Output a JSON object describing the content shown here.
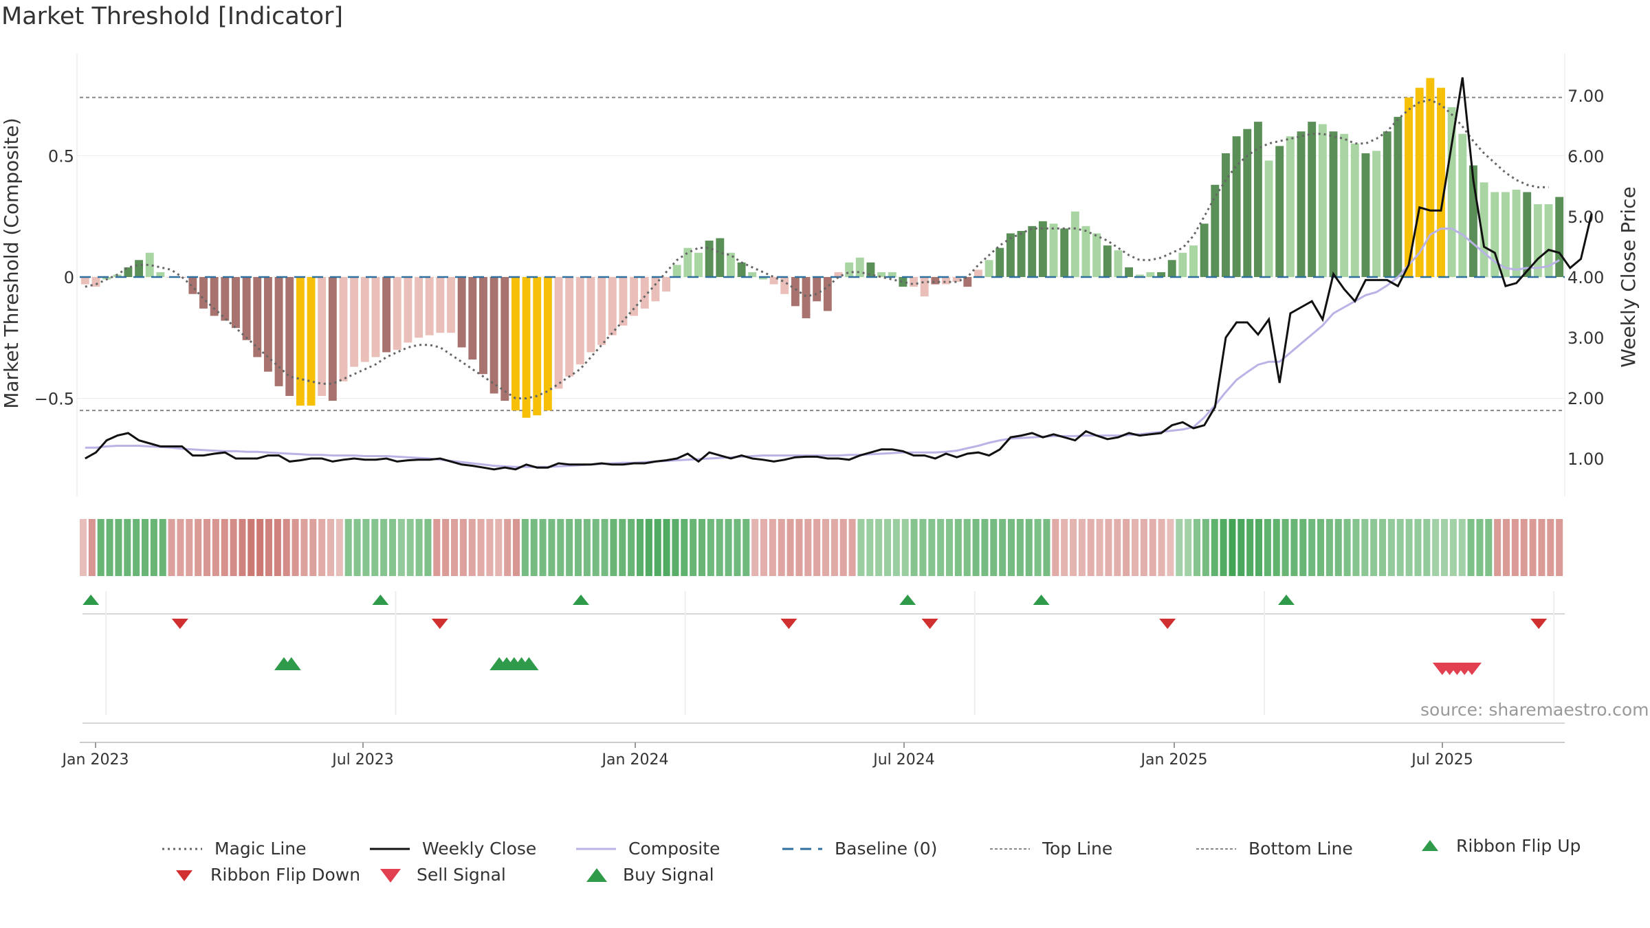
{
  "title": "Market Threshold [Indicator]",
  "source": "source: sharemaestro.com",
  "colors": {
    "dark_green": "#5b8f58",
    "light_green": "#a8d5a2",
    "dark_red": "#a8736e",
    "light_red": "#eabfb9",
    "yellow": "#f6c008",
    "weekly_close": "#111111",
    "composite": "#b9b3e6",
    "magic_line": "#666666",
    "baseline": "#2f6f9e",
    "ref_lines": "#888888",
    "buy_up": "#2e9a4a",
    "flip_down": "#d03030",
    "sell": "#e04050"
  },
  "chart_data": {
    "type": "bar",
    "y_left_label": "Market Threshold (Composite)",
    "y_right_label": "Weekly Close Price",
    "y_left_ticks": [
      "0.5",
      "0",
      "−0.5"
    ],
    "y_right_ticks": [
      "7.00",
      "6.00",
      "5.00",
      "4.00",
      "3.00",
      "2.00",
      "1.00"
    ],
    "x_ticks": [
      "Jan 2023",
      "Jul 2023",
      "Jan 2024",
      "Jul 2024",
      "Jan 2025",
      "Jul 2025"
    ],
    "top_line": 0.74,
    "bottom_line": -0.55,
    "baseline": 0,
    "composite_bars": [
      -0.03,
      -0.04,
      -0.01,
      0.01,
      0.04,
      0.07,
      0.1,
      0.02,
      0,
      0,
      -0.07,
      -0.13,
      -0.16,
      -0.18,
      -0.21,
      -0.26,
      -0.33,
      -0.39,
      -0.45,
      -0.49,
      -0.53,
      -0.53,
      -0.49,
      -0.51,
      -0.43,
      -0.37,
      -0.35,
      -0.33,
      -0.31,
      -0.3,
      -0.27,
      -0.25,
      -0.24,
      -0.23,
      -0.23,
      -0.29,
      -0.34,
      -0.4,
      -0.48,
      -0.51,
      -0.55,
      -0.58,
      -0.57,
      -0.55,
      -0.46,
      -0.41,
      -0.36,
      -0.31,
      -0.28,
      -0.24,
      -0.2,
      -0.16,
      -0.13,
      -0.1,
      -0.06,
      0.05,
      0.12,
      0.1,
      0.15,
      0.16,
      0.1,
      0.06,
      0.02,
      -0.01,
      -0.03,
      -0.07,
      -0.12,
      -0.17,
      -0.1,
      -0.14,
      0.02,
      0.06,
      0.08,
      0.06,
      0.02,
      0.02,
      -0.04,
      -0.04,
      -0.08,
      -0.03,
      -0.03,
      -0.02,
      -0.04,
      0.03,
      0.07,
      0.12,
      0.18,
      0.19,
      0.21,
      0.23,
      0.22,
      0.2,
      0.27,
      0.21,
      0.18,
      0.13,
      0.11,
      0.04,
      0.01,
      0.02,
      0.02,
      0.07,
      0.1,
      0.13,
      0.22,
      0.38,
      0.51,
      0.58,
      0.61,
      0.64,
      0.48,
      0.54,
      0.58,
      0.6,
      0.64,
      0.63,
      0.6,
      0.59,
      0.55,
      0.51,
      0.52,
      0.6,
      0.66,
      0.74,
      0.78,
      0.82,
      0.78,
      0.7,
      0.59,
      0.46,
      0.39,
      0.35,
      0.35,
      0.36,
      0.35,
      0.3,
      0.3,
      0.33
    ],
    "magic_line": [
      -0.04,
      -0.03,
      -0.01,
      0.01,
      0.04,
      0.05,
      0.05,
      0.04,
      0.03,
      0,
      -0.04,
      -0.09,
      -0.13,
      -0.17,
      -0.21,
      -0.25,
      -0.29,
      -0.33,
      -0.37,
      -0.41,
      -0.42,
      -0.43,
      -0.44,
      -0.44,
      -0.42,
      -0.4,
      -0.38,
      -0.36,
      -0.33,
      -0.31,
      -0.29,
      -0.28,
      -0.28,
      -0.29,
      -0.32,
      -0.35,
      -0.38,
      -0.41,
      -0.44,
      -0.47,
      -0.5,
      -0.5,
      -0.49,
      -0.47,
      -0.44,
      -0.41,
      -0.38,
      -0.33,
      -0.28,
      -0.23,
      -0.18,
      -0.13,
      -0.08,
      -0.03,
      0.02,
      0.07,
      0.1,
      0.12,
      0.12,
      0.1,
      0.09,
      0.06,
      0.04,
      0.02,
      0,
      -0.02,
      -0.05,
      -0.08,
      -0.07,
      -0.04,
      0,
      0.02,
      0.02,
      0.01,
      0,
      -0.01,
      -0.02,
      -0.03,
      -0.02,
      -0.02,
      -0.02,
      -0.02,
      0,
      0.05,
      0.09,
      0.13,
      0.16,
      0.18,
      0.2,
      0.2,
      0.2,
      0.2,
      0.2,
      0.19,
      0.17,
      0.15,
      0.12,
      0.09,
      0.07,
      0.07,
      0.08,
      0.1,
      0.12,
      0.17,
      0.25,
      0.33,
      0.4,
      0.46,
      0.5,
      0.53,
      0.55,
      0.56,
      0.57,
      0.58,
      0.59,
      0.59,
      0.58,
      0.57,
      0.55,
      0.55,
      0.57,
      0.6,
      0.65,
      0.69,
      0.72,
      0.73,
      0.71,
      0.67,
      0.62,
      0.56,
      0.51,
      0.47,
      0.43,
      0.4,
      0.38,
      0.37,
      0.37
    ],
    "composite_line": [
      1.18,
      1.18,
      1.2,
      1.21,
      1.21,
      1.21,
      1.2,
      1.19,
      1.18,
      1.16,
      1.15,
      1.14,
      1.13,
      1.12,
      1.12,
      1.11,
      1.11,
      1.1,
      1.09,
      1.08,
      1.07,
      1.06,
      1.06,
      1.05,
      1.05,
      1.05,
      1.04,
      1.04,
      1.04,
      1.03,
      1.02,
      1.01,
      1.0,
      0.98,
      0.96,
      0.94,
      0.92,
      0.9,
      0.88,
      0.87,
      0.86,
      0.86,
      0.86,
      0.86,
      0.87,
      0.88,
      0.89,
      0.9,
      0.91,
      0.92,
      0.93,
      0.93,
      0.94,
      0.95,
      0.96,
      0.97,
      0.98,
      0.99,
      1.0,
      1.01,
      1.02,
      1.03,
      1.04,
      1.05,
      1.05,
      1.05,
      1.05,
      1.05,
      1.05,
      1.05,
      1.05,
      1.06,
      1.06,
      1.07,
      1.08,
      1.09,
      1.1,
      1.1,
      1.1,
      1.1,
      1.11,
      1.13,
      1.17,
      1.21,
      1.26,
      1.3,
      1.33,
      1.34,
      1.35,
      1.36,
      1.37,
      1.37,
      1.37,
      1.38,
      1.38,
      1.38,
      1.38,
      1.39,
      1.4,
      1.42,
      1.44,
      1.46,
      1.48,
      1.52,
      1.68,
      1.88,
      2.1,
      2.3,
      2.43,
      2.55,
      2.6,
      2.6,
      2.75,
      2.9,
      3.05,
      3.2,
      3.4,
      3.5,
      3.6,
      3.7,
      3.75,
      3.86,
      4.0,
      4.2,
      4.4,
      4.7,
      4.8,
      4.8,
      4.7,
      4.55,
      4.4,
      4.25,
      4.15,
      4.12,
      4.15,
      4.15,
      4.18,
      4.28
    ],
    "weekly_close": [
      1.0,
      1.1,
      1.3,
      1.38,
      1.42,
      1.3,
      1.25,
      1.2,
      1.2,
      1.2,
      1.05,
      1.05,
      1.08,
      1.1,
      1.0,
      1.0,
      1.0,
      1.05,
      1.05,
      0.95,
      0.97,
      1.0,
      1.0,
      0.95,
      0.98,
      1.0,
      0.98,
      0.98,
      1.0,
      0.95,
      0.97,
      0.98,
      0.98,
      1.0,
      0.95,
      0.9,
      0.88,
      0.85,
      0.82,
      0.85,
      0.82,
      0.9,
      0.85,
      0.85,
      0.92,
      0.9,
      0.9,
      0.9,
      0.92,
      0.9,
      0.9,
      0.92,
      0.92,
      0.95,
      0.97,
      1.0,
      1.08,
      0.95,
      1.1,
      1.05,
      1.0,
      1.05,
      1.0,
      0.98,
      0.95,
      0.98,
      1.02,
      1.03,
      1.03,
      1.0,
      1.0,
      0.98,
      1.05,
      1.1,
      1.15,
      1.15,
      1.12,
      1.05,
      1.05,
      1.0,
      1.08,
      1.02,
      1.08,
      1.1,
      1.05,
      1.15,
      1.35,
      1.38,
      1.42,
      1.35,
      1.4,
      1.35,
      1.3,
      1.45,
      1.38,
      1.32,
      1.35,
      1.42,
      1.38,
      1.4,
      1.42,
      1.55,
      1.6,
      1.5,
      1.55,
      1.85,
      3.0,
      3.25,
      3.25,
      3.05,
      3.3,
      2.25,
      3.4,
      3.5,
      3.6,
      3.3,
      4.05,
      3.8,
      3.6,
      3.95,
      3.95,
      3.95,
      3.85,
      4.2,
      5.15,
      5.1,
      5.1,
      6.2,
      7.3,
      5.6,
      4.5,
      4.4,
      3.85,
      3.9,
      4.1,
      4.3,
      4.45,
      4.4,
      4.15,
      4.3,
      5.05
    ],
    "bar_styles": [
      "lr",
      "lr",
      "lg",
      "lg",
      "dg",
      "dg",
      "lg",
      "lg",
      "lr",
      "lr",
      "dr",
      "dr",
      "dr",
      "dr",
      "dr",
      "dr",
      "dr",
      "dr",
      "dr",
      "dr",
      "y",
      "y",
      "lr",
      "dr",
      "lr",
      "lr",
      "lr",
      "lr",
      "dr",
      "lr",
      "lr",
      "lr",
      "lr",
      "lr",
      "lr",
      "dr",
      "dr",
      "dr",
      "dr",
      "dr",
      "y",
      "y",
      "y",
      "y",
      "lr",
      "lr",
      "lr",
      "lr",
      "lr",
      "lr",
      "lr",
      "lr",
      "lr",
      "lr",
      "lr",
      "lg",
      "lg",
      "lg",
      "dg",
      "dg",
      "lg",
      "dg",
      "lg",
      "lg",
      "lr",
      "lr",
      "dr",
      "dr",
      "dr",
      "dr",
      "lr",
      "lg",
      "lg",
      "dg",
      "lg",
      "lg",
      "dg",
      "lr",
      "lr",
      "dr",
      "lr",
      "lr",
      "dr",
      "lr",
      "lg",
      "dg",
      "dg",
      "dg",
      "dg",
      "dg",
      "lg",
      "dg",
      "lg",
      "lg",
      "lg",
      "dg",
      "lg",
      "dg",
      "lg",
      "lg",
      "dg",
      "dg",
      "lg",
      "lg",
      "dg",
      "dg",
      "dg",
      "dg",
      "dg",
      "dg",
      "lg",
      "dg",
      "lg",
      "dg",
      "dg",
      "lg",
      "dg",
      "lg",
      "lg",
      "dg",
      "lg",
      "dg",
      "dg",
      "y",
      "y",
      "y",
      "y",
      "lg",
      "lg",
      "dg",
      "lg",
      "lg",
      "lg",
      "lg",
      "dg",
      "lg",
      "lg",
      "dg"
    ],
    "ribbon_color_levels": [
      0.2,
      0.6,
      0.7,
      0.7,
      0.7,
      0.7,
      0.7,
      0.7,
      0.7,
      0.7,
      0.5,
      0.5,
      0.5,
      0.55,
      0.6,
      0.6,
      0.65,
      0.7,
      0.8,
      0.9,
      0.9,
      0.8,
      0.8,
      0.7,
      0.6,
      0.5,
      0.5,
      0.4,
      0.3,
      0.2,
      0.5,
      0.5,
      0.5,
      0.5,
      0.5,
      0.5,
      0.4,
      0.45,
      0.5,
      0.55,
      0.55,
      0.55,
      0.5,
      0.5,
      0.45,
      0.4,
      0.35,
      0.3,
      0.5,
      0.6,
      0.6,
      0.6,
      0.6,
      0.6,
      0.6,
      0.6,
      0.6,
      0.6,
      0.6,
      0.6,
      0.7,
      0.7,
      0.7,
      0.8,
      0.85,
      0.85,
      0.85,
      0.8,
      0.75,
      0.7,
      0.7,
      0.65,
      0.65,
      0.65,
      0.65,
      0.65,
      0.3,
      0.35,
      0.4,
      0.45,
      0.5,
      0.5,
      0.45,
      0.45,
      0.4,
      0.4,
      0.45,
      0.45,
      0.35,
      0.35,
      0.35,
      0.35,
      0.35,
      0.35,
      0.5,
      0.5,
      0.5,
      0.5,
      0.5,
      0.55,
      0.55,
      0.6,
      0.6,
      0.6,
      0.6,
      0.6,
      0.6,
      0.6,
      0.55,
      0.6,
      0.4,
      0.3,
      0.3,
      0.3,
      0.35,
      0.3,
      0.35,
      0.35,
      0.4,
      0.3,
      0.35,
      0.35,
      0.3,
      0.2,
      0.3,
      0.3,
      0.5,
      0.6,
      0.75,
      0.85,
      0.95,
      0.9,
      0.85,
      0.85,
      0.75,
      0.75,
      0.7,
      0.7,
      0.7,
      0.65,
      0.65,
      0.6,
      0.6,
      0.55,
      0.5,
      0.45,
      0.45,
      0.45,
      0.4,
      0.4,
      0.4,
      0.4,
      0.4,
      0.3,
      0.3,
      0.3,
      0.3,
      0.55,
      0.55,
      0.55,
      0.55,
      0.55,
      0.55,
      0.55,
      0.55,
      0.55,
      0.55,
      0.55
    ],
    "ribbon_signs": [
      "r",
      "r",
      "g",
      "g",
      "g",
      "g",
      "g",
      "g",
      "g",
      "g",
      "r",
      "r",
      "r",
      "r",
      "r",
      "r",
      "r",
      "r",
      "r",
      "r",
      "r",
      "r",
      "r",
      "r",
      "r",
      "r",
      "r",
      "r",
      "r",
      "r",
      "g",
      "g",
      "g",
      "g",
      "g",
      "g",
      "g",
      "g",
      "g",
      "g",
      "r",
      "r",
      "r",
      "r",
      "r",
      "r",
      "r",
      "r",
      "r",
      "r",
      "g",
      "g",
      "g",
      "g",
      "g",
      "g",
      "g",
      "g",
      "g",
      "g",
      "g",
      "g",
      "g",
      "g",
      "g",
      "g",
      "g",
      "g",
      "g",
      "g",
      "g",
      "g",
      "g",
      "g",
      "g",
      "g",
      "r",
      "r",
      "r",
      "r",
      "r",
      "r",
      "r",
      "r",
      "r",
      "r",
      "r",
      "r",
      "g",
      "g",
      "g",
      "g",
      "g",
      "g",
      "g",
      "g",
      "g",
      "g",
      "g",
      "g",
      "g",
      "g",
      "g",
      "g",
      "g",
      "g",
      "g",
      "g",
      "g",
      "g",
      "r",
      "r",
      "r",
      "r",
      "r",
      "r",
      "r",
      "r",
      "r",
      "r",
      "r",
      "r",
      "r",
      "r",
      "g",
      "g",
      "g",
      "g",
      "g",
      "g",
      "g",
      "g",
      "g",
      "g",
      "g",
      "g",
      "g",
      "g",
      "g",
      "g",
      "g",
      "g",
      "g",
      "g",
      "g",
      "g",
      "g",
      "g",
      "g",
      "g",
      "g",
      "g",
      "g",
      "g",
      "g",
      "g",
      "g",
      "g",
      "g",
      "g",
      "r",
      "r",
      "r",
      "r",
      "r",
      "r",
      "r",
      "r",
      "r",
      "r",
      "r"
    ],
    "ribbon_flip_up_weeks": [
      1,
      40,
      67,
      111,
      129,
      162
    ],
    "ribbon_flip_down_weeks": [
      13,
      48,
      95,
      114,
      146,
      196
    ],
    "buy_signal_weeks": [
      27,
      28,
      56,
      57,
      58,
      59,
      60
    ],
    "sell_signal_weeks": [
      183,
      184,
      185,
      186,
      187
    ],
    "legend": [
      {
        "label": "Magic Line",
        "type": "dotted-line"
      },
      {
        "label": "Weekly Close",
        "type": "solid-line"
      },
      {
        "label": "Composite",
        "type": "lavender-line"
      },
      {
        "label": "Baseline (0)",
        "type": "dashed-line"
      },
      {
        "label": "Top Line",
        "type": "thin-dotted-line"
      },
      {
        "label": "Bottom Line",
        "type": "thin-dotted-line"
      },
      {
        "label": "Ribbon Flip Up",
        "type": "triangle-up"
      },
      {
        "label": "Ribbon Flip Down",
        "type": "triangle-down-dark"
      },
      {
        "label": "Sell Signal",
        "type": "triangle-down-red"
      },
      {
        "label": "Buy Signal",
        "type": "triangle-up-big"
      }
    ]
  }
}
